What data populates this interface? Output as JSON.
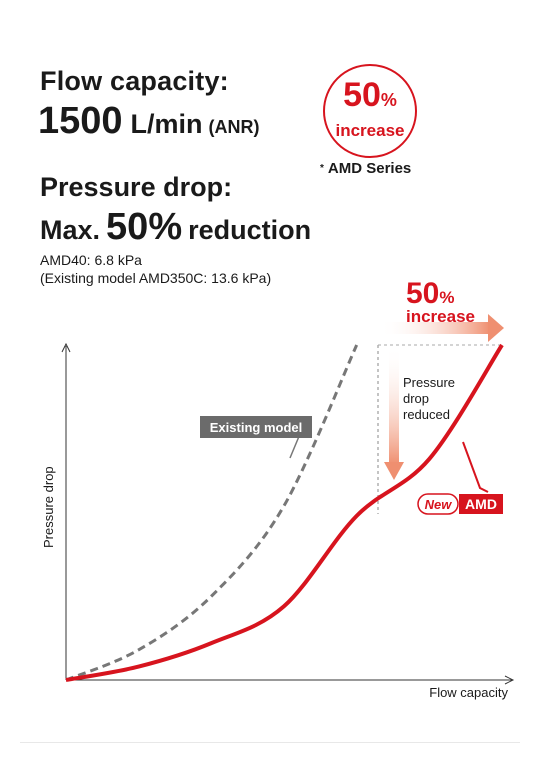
{
  "header": {
    "flow_label": "Flow capacity:",
    "flow_value": "1500",
    "flow_unit": "L/min",
    "flow_anr": "(ANR)",
    "pd_label": "Pressure drop:",
    "pd_pre": "Max.",
    "pd_value": "50",
    "pd_percent": "%",
    "pd_post": "reduction",
    "note_line1": "AMD40: 6.8 kPa",
    "note_line2": "(Existing model AMD350C: 13.6 kPa)"
  },
  "badge": {
    "value": "50",
    "percent": "%",
    "word": "increase",
    "series_asterisk": "*",
    "series_note": "AMD Series"
  },
  "chart_data": {
    "type": "line",
    "xlabel": "Flow capacity",
    "ylabel": "Pressure drop",
    "xlim": [
      0,
      1.5
    ],
    "ylim": [
      0,
      1
    ],
    "series": [
      {
        "name": "Existing model",
        "style": "dashed",
        "color": "#777777",
        "x": [
          0,
          0.25,
          0.5,
          0.75,
          1.0
        ],
        "y": [
          0,
          0.09,
          0.25,
          0.52,
          1.0
        ]
      },
      {
        "name": "AMD",
        "style": "solid",
        "color": "#d7141e",
        "x": [
          0,
          0.25,
          0.5,
          0.75,
          1.0,
          1.25,
          1.5
        ],
        "y": [
          0,
          0.04,
          0.11,
          0.22,
          0.49,
          0.66,
          1.0
        ]
      }
    ],
    "annotations": {
      "increase_value": "50",
      "increase_percent": "%",
      "increase_word": "increase",
      "reduced_line1": "Pressure",
      "reduced_line2": "drop",
      "reduced_line3": "reduced",
      "existing_label": "Existing model",
      "new_label": "New",
      "amd_label": "AMD"
    },
    "colors": {
      "accent": "#d7141e",
      "arrow": "#ef8f70",
      "gray": "#777777"
    }
  }
}
